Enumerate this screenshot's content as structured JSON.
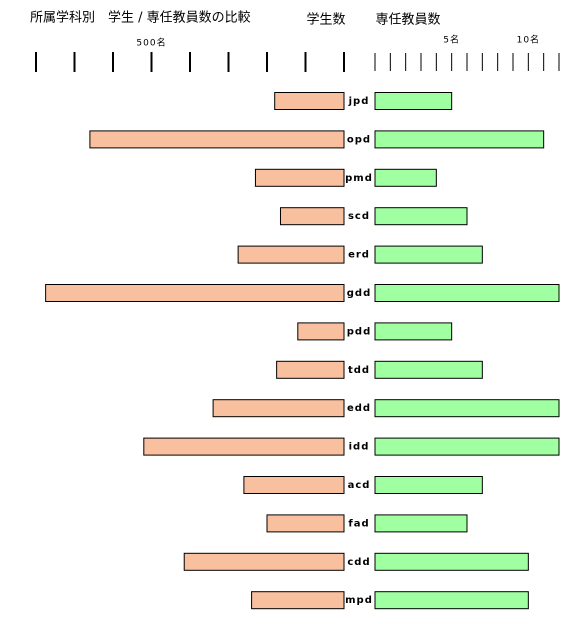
{
  "chart_data": {
    "type": "butterfly",
    "title": "所属学科別　学生 / 専任教員数の比較",
    "categories": [
      "jpd",
      "opd",
      "pmd",
      "scd",
      "erd",
      "gdd",
      "pdd",
      "tdd",
      "edd",
      "idd",
      "acd",
      "fad",
      "cdd",
      "mpd"
    ],
    "series": [
      {
        "name": "学生数",
        "color": "#f9c0a0",
        "axis": "x",
        "values": [
          180,
          660,
          230,
          165,
          275,
          775,
          120,
          175,
          340,
          520,
          260,
          200,
          415,
          240
        ]
      },
      {
        "name": "専任教員数",
        "color": "#a0ffa0",
        "axis": "x2",
        "values": [
          5,
          11,
          4,
          6,
          7,
          12,
          5,
          7,
          12,
          12,
          7,
          6,
          10,
          10
        ]
      }
    ],
    "xlim": [
      0,
      800
    ],
    "xticks": [
      {
        "value": 500,
        "label": "500名"
      }
    ],
    "xticks_minor": [
      0,
      100,
      200,
      300,
      400,
      500,
      600,
      700,
      800
    ],
    "x2lim": [
      0,
      12
    ],
    "x2ticks": [
      {
        "value": 5,
        "label": "5名"
      },
      {
        "value": 10,
        "label": "10名"
      }
    ],
    "x2ticks_minor": [
      0,
      1,
      2,
      3,
      4,
      5,
      6,
      7,
      8,
      9,
      10,
      11,
      12
    ]
  }
}
